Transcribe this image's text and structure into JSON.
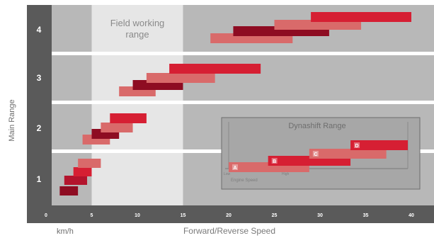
{
  "chart_data": {
    "type": "range-bar",
    "ylabel": "Main Range",
    "xlabel": "Forward/Reverse Speed",
    "unit_label": "km/h",
    "xlim": [
      0,
      40
    ],
    "x_ticks": [
      "0",
      "5",
      "10",
      "15",
      "20",
      "25",
      "30",
      "35",
      "40"
    ],
    "main_ranges": [
      "1",
      "2",
      "3",
      "4"
    ],
    "field_working_range": {
      "label": "Field working range",
      "x": [
        5,
        15
      ]
    },
    "bars": [
      {
        "range": "1",
        "x": [
          1.5,
          3.5
        ],
        "color": "dark"
      },
      {
        "range": "1",
        "x": [
          2.0,
          4.5
        ],
        "color": "mid"
      },
      {
        "range": "1",
        "x": [
          3.0,
          5.0
        ],
        "color": "bright"
      },
      {
        "range": "1",
        "x": [
          3.5,
          6.0
        ],
        "color": "light"
      },
      {
        "range": "2",
        "x": [
          4.0,
          7.0
        ],
        "color": "light"
      },
      {
        "range": "2",
        "x": [
          5.0,
          8.0
        ],
        "color": "dark"
      },
      {
        "range": "2",
        "x": [
          6.0,
          9.5
        ],
        "color": "light"
      },
      {
        "range": "2",
        "x": [
          7.0,
          11.0
        ],
        "color": "bright"
      },
      {
        "range": "3",
        "x": [
          8.0,
          12.0
        ],
        "color": "light"
      },
      {
        "range": "3",
        "x": [
          9.5,
          15.0
        ],
        "color": "dark"
      },
      {
        "range": "3",
        "x": [
          11.0,
          18.5
        ],
        "color": "light"
      },
      {
        "range": "3",
        "x": [
          13.5,
          23.5
        ],
        "color": "bright"
      },
      {
        "range": "4",
        "x": [
          18.0,
          27.0
        ],
        "color": "light"
      },
      {
        "range": "4",
        "x": [
          20.5,
          31.0
        ],
        "color": "dark"
      },
      {
        "range": "4",
        "x": [
          25.0,
          34.5
        ],
        "color": "light"
      },
      {
        "range": "4",
        "x": [
          29.0,
          40.0
        ],
        "color": "bright"
      }
    ],
    "dynashift": {
      "title": "Dynashift Range",
      "steps": [
        {
          "letter": "A",
          "x": [
            0,
            45
          ],
          "color": "light"
        },
        {
          "letter": "B",
          "x": [
            22,
            68
          ],
          "color": "bright"
        },
        {
          "letter": "C",
          "x": [
            45,
            88
          ],
          "color": "light"
        },
        {
          "letter": "D",
          "x": [
            68,
            100
          ],
          "color": "bright"
        }
      ],
      "tick_labels": [
        "Low",
        "High"
      ],
      "sub_label": "Engine Speed"
    },
    "colors": {
      "dark": "#8e0c22",
      "mid": "#b3142d",
      "bright": "#d61f33",
      "light": "#d96a6a",
      "frame": "#5a5a5a",
      "plot_bg": "#b8b8b8",
      "field_bg": "#e6e6e6",
      "separator": "#ffffff",
      "inset_bg": "#a7a7a7",
      "inset_border": "#6e6e6e"
    }
  }
}
